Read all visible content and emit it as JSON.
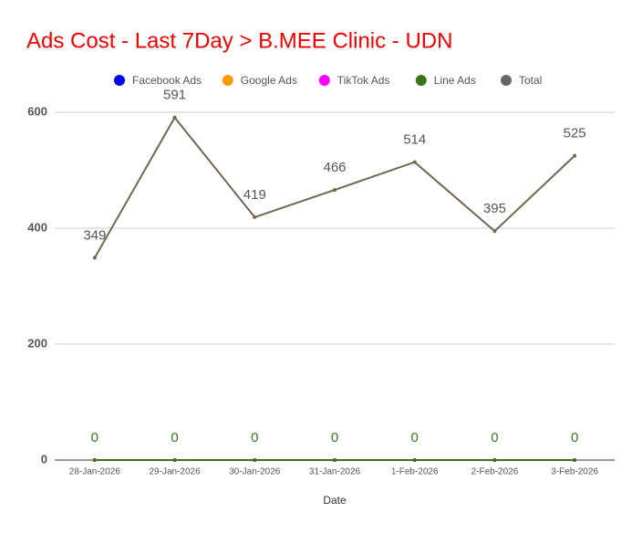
{
  "chart_data": {
    "type": "line",
    "title": "Ads Cost - Last 7Day > B.MEE Clinic - UDN",
    "x_label": "Date",
    "categories": [
      "28-Jan-2026",
      "29-Jan-2026",
      "30-Jan-2026",
      "31-Jan-2026",
      "1-Feb-2026",
      "2-Feb-2026",
      "3-Feb-2026"
    ],
    "series": [
      {
        "name": "Facebook Ads",
        "color": "#0000ff",
        "values": [
          0,
          0,
          0,
          0,
          0,
          0,
          0
        ]
      },
      {
        "name": "Google Ads",
        "color": "#ff9900",
        "values": [
          0,
          0,
          0,
          0,
          0,
          0,
          0
        ]
      },
      {
        "name": "TikTok Ads",
        "color": "#ff00ff",
        "values": [
          0,
          0,
          0,
          0,
          0,
          0,
          0
        ]
      },
      {
        "name": "Line Ads",
        "color": "#38761d",
        "values": [
          0,
          0,
          0,
          0,
          0,
          0,
          0
        ],
        "data_labels": true
      },
      {
        "name": "Total",
        "color": "#736550",
        "values": [
          349,
          591,
          419,
          466,
          514,
          395,
          525
        ],
        "data_labels": true
      }
    ],
    "ylim": [
      0,
      600
    ],
    "yticks": [
      0,
      200,
      400,
      600
    ],
    "grid": true,
    "legend": "top"
  }
}
